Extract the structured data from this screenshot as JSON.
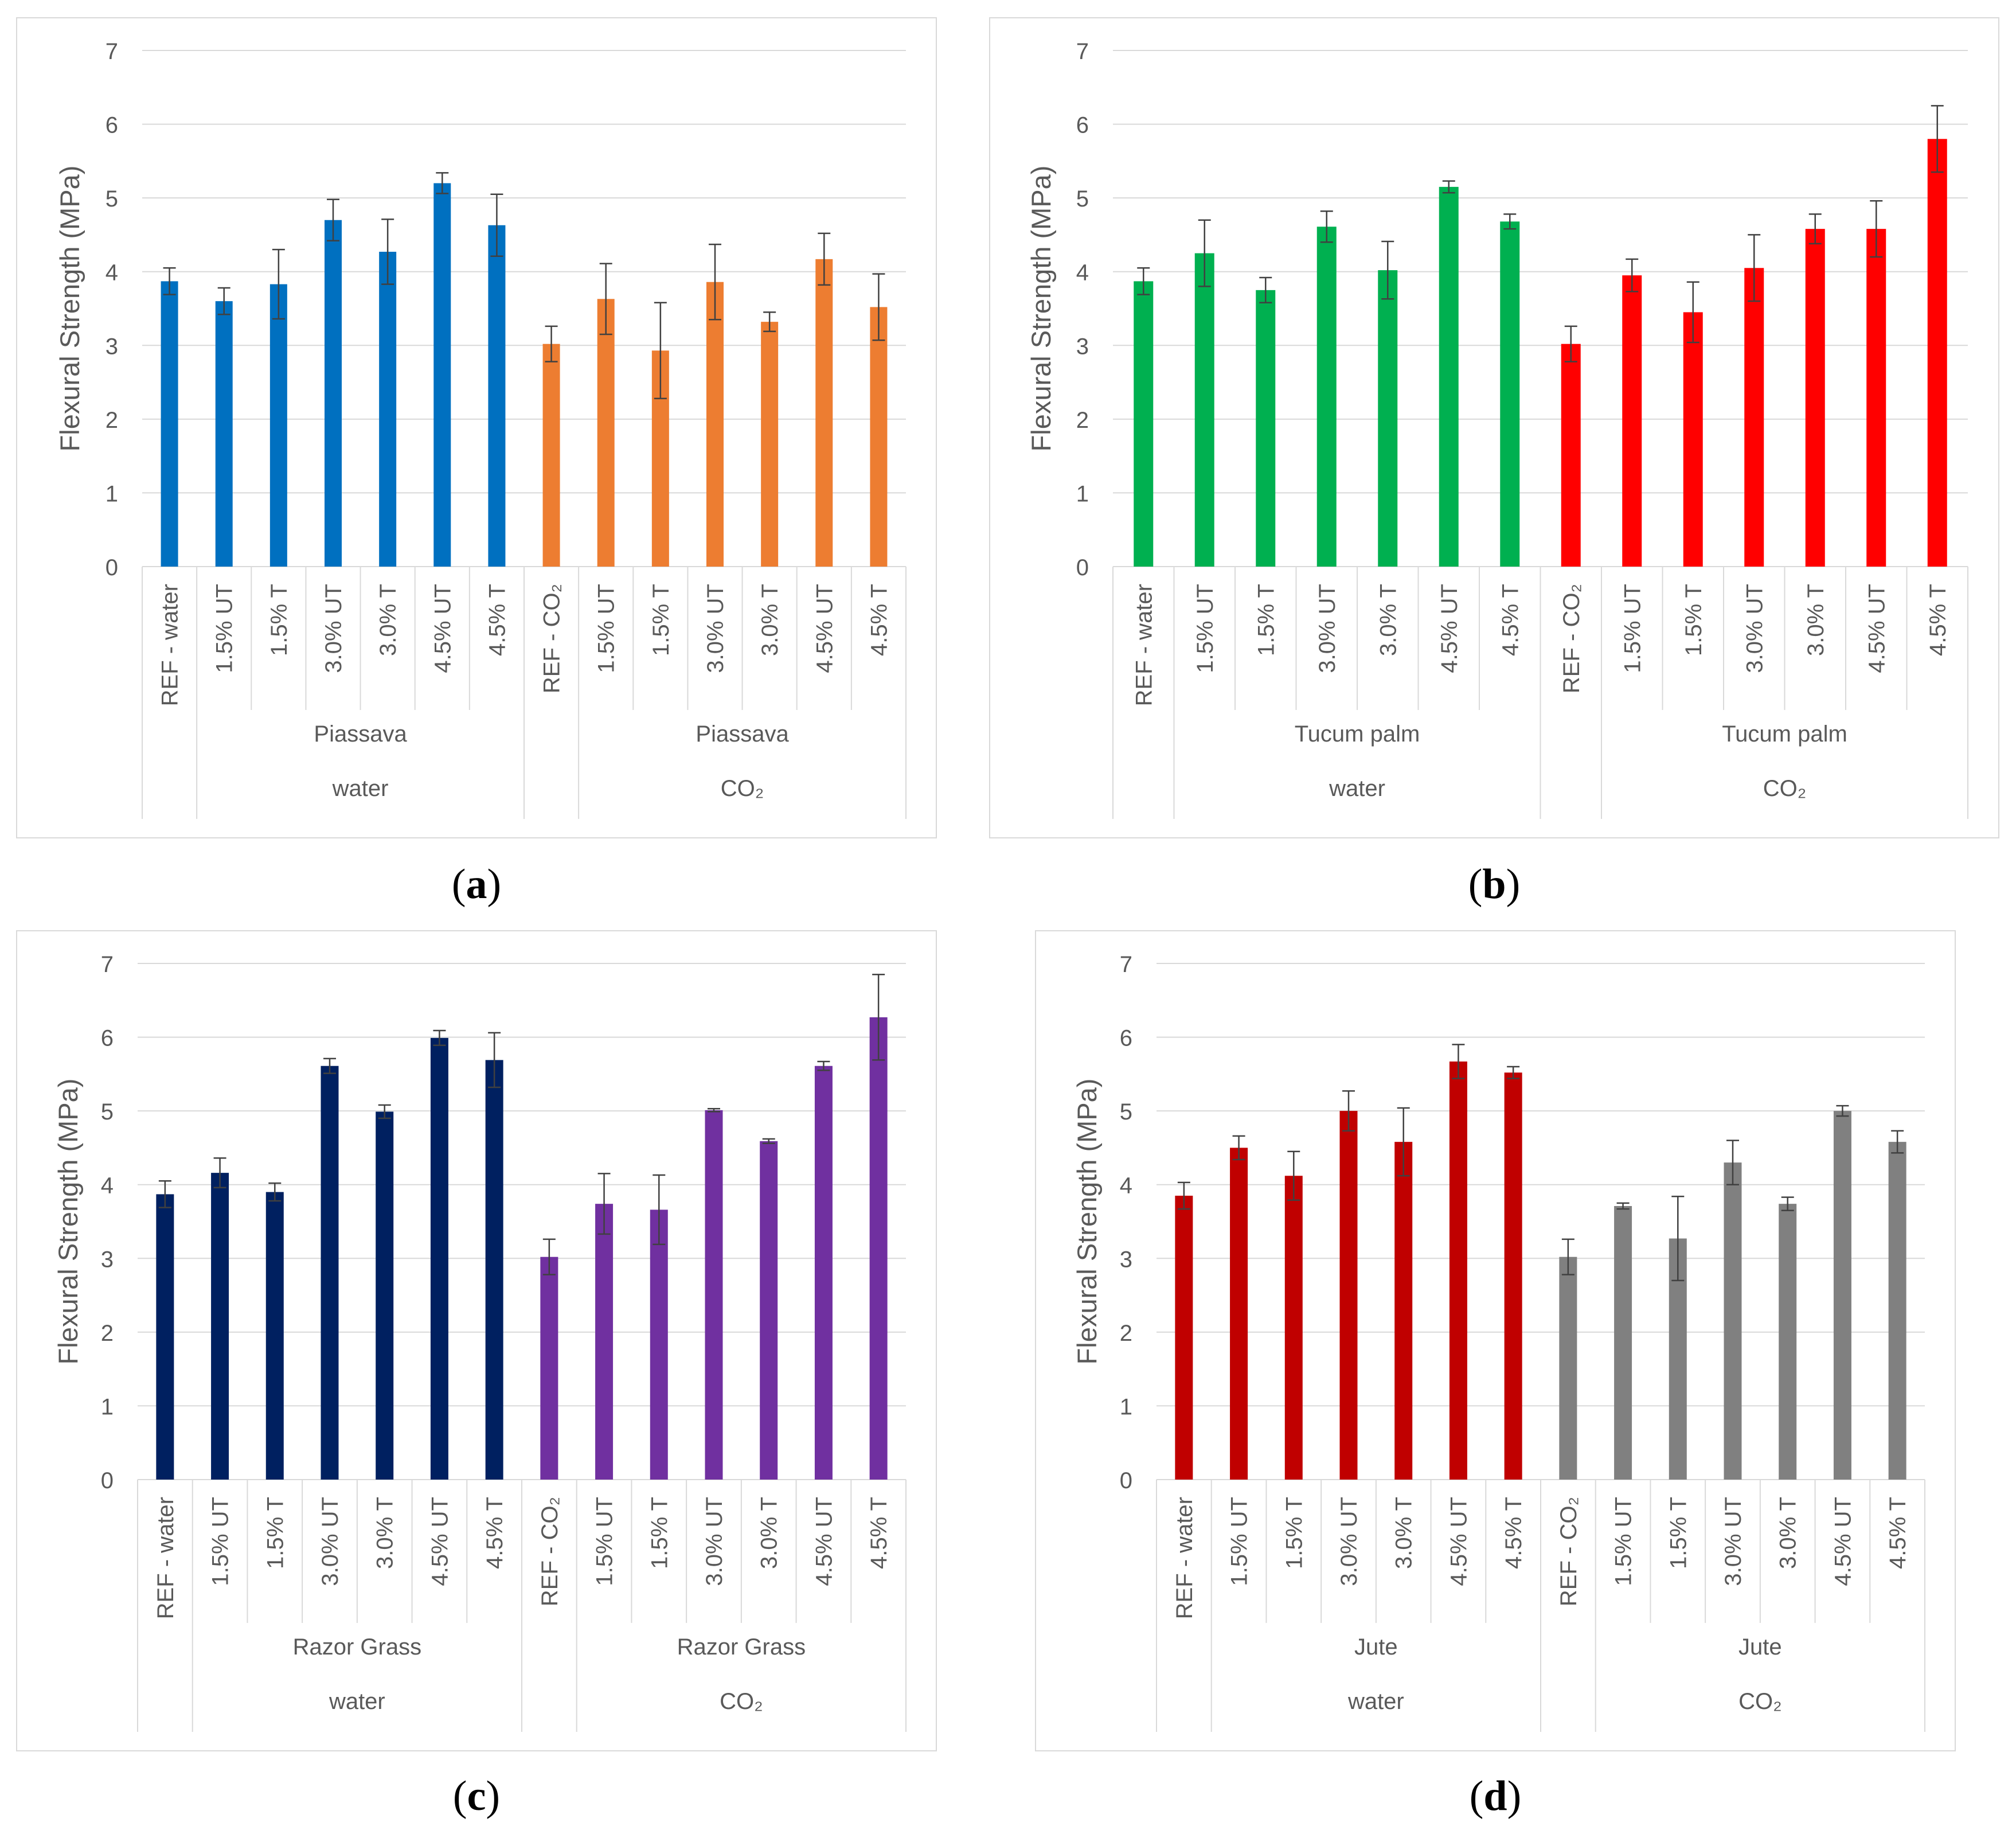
{
  "chart_data": [
    {
      "type": "bar",
      "panel": "a",
      "caption_letter": "a",
      "ylabel": "Flexural Strength (MPa)",
      "ylim": [
        0,
        7
      ],
      "yticks": [
        "0",
        "1",
        "2",
        "3",
        "4",
        "5",
        "6",
        "7"
      ],
      "grid": true,
      "categories": [
        "REF - water",
        "1.5% UT",
        "1.5%  T",
        "3.0%  UT",
        "3.0%  T",
        "4.5%  UT",
        "4.5% T",
        "REF - CO₂",
        "1.5% UT",
        "1.5%  T",
        "3.0%  UT",
        "3.0%  T",
        "4.5%  UT",
        "4.5% T"
      ],
      "values": [
        3.87,
        3.6,
        3.83,
        4.7,
        4.27,
        5.2,
        4.63,
        3.02,
        3.63,
        2.93,
        3.86,
        3.32,
        4.17,
        3.52
      ],
      "errors": [
        0.18,
        0.18,
        0.47,
        0.28,
        0.44,
        0.14,
        0.42,
        0.24,
        0.48,
        0.65,
        0.51,
        0.13,
        0.35,
        0.45
      ],
      "colors": [
        "#0070c0",
        "#0070c0",
        "#0070c0",
        "#0070c0",
        "#0070c0",
        "#0070c0",
        "#0070c0",
        "#ed7d31",
        "#ed7d31",
        "#ed7d31",
        "#ed7d31",
        "#ed7d31",
        "#ed7d31",
        "#ed7d31"
      ],
      "fiber_groups": [
        {
          "label": "Piassava",
          "start": 1,
          "end": 6
        },
        {
          "label": "Piassava",
          "start": 8,
          "end": 13
        }
      ],
      "env_groups": [
        {
          "label": "water",
          "start": 1,
          "end": 6
        },
        {
          "label": "CO₂",
          "start": 8,
          "end": 13
        }
      ]
    },
    {
      "type": "bar",
      "panel": "b",
      "caption_letter": "b",
      "ylabel": "Flexural Strength (MPa)",
      "ylim": [
        0,
        7
      ],
      "yticks": [
        "0",
        "1",
        "2",
        "3",
        "4",
        "5",
        "6",
        "7"
      ],
      "grid": true,
      "categories": [
        "REF - water",
        "1.5% UT",
        "1.5%  T",
        "3.0%  UT",
        "3.0%  T",
        "4.5%  UT",
        "4.5% T",
        "REF - CO₂",
        "1.5% UT",
        "1.5%  T",
        "3.0%  UT",
        "3.0%  T",
        "4.5%  UT",
        "4.5% T"
      ],
      "values": [
        3.87,
        4.25,
        3.75,
        4.61,
        4.02,
        5.15,
        4.68,
        3.02,
        3.95,
        3.45,
        4.05,
        4.58,
        4.58,
        5.8
      ],
      "errors": [
        0.18,
        0.45,
        0.17,
        0.21,
        0.39,
        0.08,
        0.1,
        0.24,
        0.22,
        0.41,
        0.45,
        0.2,
        0.38,
        0.45
      ],
      "colors": [
        "#00b050",
        "#00b050",
        "#00b050",
        "#00b050",
        "#00b050",
        "#00b050",
        "#00b050",
        "#ff0000",
        "#ff0000",
        "#ff0000",
        "#ff0000",
        "#ff0000",
        "#ff0000",
        "#ff0000"
      ],
      "fiber_groups": [
        {
          "label": "Tucum palm",
          "start": 1,
          "end": 6
        },
        {
          "label": "Tucum palm",
          "start": 8,
          "end": 13
        }
      ],
      "env_groups": [
        {
          "label": "water",
          "start": 1,
          "end": 6
        },
        {
          "label": "CO₂",
          "start": 8,
          "end": 13
        }
      ]
    },
    {
      "type": "bar",
      "panel": "c",
      "caption_letter": "c",
      "ylabel": "Flexural Strength (MPa)",
      "ylim": [
        0,
        7
      ],
      "yticks": [
        "0",
        "1",
        "2",
        "3",
        "4",
        "5",
        "6",
        "7"
      ],
      "grid": true,
      "categories": [
        "REF - water",
        "1.5% UT",
        "1.5%  T",
        "3.0%  UT",
        "3.0%  T",
        "4.5%  UT",
        "4.5% T",
        "REF - CO₂",
        "1.5% UT",
        "1.5%  T",
        "3.0%  UT",
        "3.0%  T",
        "4.5%  UT",
        "4.5% T"
      ],
      "values": [
        3.87,
        4.16,
        3.9,
        5.61,
        4.99,
        5.99,
        5.69,
        3.02,
        3.74,
        3.66,
        5.01,
        4.59,
        5.61,
        6.27
      ],
      "errors": [
        0.18,
        0.2,
        0.12,
        0.1,
        0.09,
        0.1,
        0.37,
        0.24,
        0.41,
        0.47,
        0.02,
        0.03,
        0.06,
        0.58
      ],
      "colors": [
        "#002060",
        "#002060",
        "#002060",
        "#002060",
        "#002060",
        "#002060",
        "#002060",
        "#7030a0",
        "#7030a0",
        "#7030a0",
        "#7030a0",
        "#7030a0",
        "#7030a0",
        "#7030a0"
      ],
      "fiber_groups": [
        {
          "label": "Razor Grass",
          "start": 1,
          "end": 6
        },
        {
          "label": "Razor Grass",
          "start": 8,
          "end": 13
        }
      ],
      "env_groups": [
        {
          "label": "water",
          "start": 1,
          "end": 6
        },
        {
          "label": "CO₂",
          "start": 8,
          "end": 13
        }
      ]
    },
    {
      "type": "bar",
      "panel": "d",
      "caption_letter": "d",
      "ylabel": "Flexural Strength (MPa)",
      "ylim": [
        0,
        7
      ],
      "yticks": [
        "0",
        "1",
        "2",
        "3",
        "4",
        "5",
        "6",
        "7"
      ],
      "grid": true,
      "categories": [
        "REF - water",
        "1.5% UT",
        "1.5%  T",
        "3.0%  UT",
        "3.0%  T",
        "4.5%  UT",
        "4.5% T",
        "REF - CO₂",
        "1.5% UT",
        "1.5%  T",
        "3.0%  UT",
        "3.0%  T",
        "4.5%  UT",
        "4.5% T"
      ],
      "values": [
        3.85,
        4.5,
        4.12,
        5.0,
        4.58,
        5.67,
        5.52,
        3.02,
        3.71,
        3.27,
        4.3,
        3.74,
        5.0,
        4.58
      ],
      "errors": [
        0.18,
        0.16,
        0.33,
        0.27,
        0.46,
        0.23,
        0.08,
        0.24,
        0.04,
        0.57,
        0.3,
        0.09,
        0.07,
        0.15
      ],
      "colors": [
        "#c00000",
        "#c00000",
        "#c00000",
        "#c00000",
        "#c00000",
        "#c00000",
        "#c00000",
        "#808080",
        "#808080",
        "#808080",
        "#808080",
        "#808080",
        "#808080",
        "#808080"
      ],
      "fiber_groups": [
        {
          "label": "Jute",
          "start": 1,
          "end": 6
        },
        {
          "label": "Jute",
          "start": 8,
          "end": 13
        }
      ],
      "env_groups": [
        {
          "label": "water",
          "start": 1,
          "end": 6
        },
        {
          "label": "CO₂",
          "start": 8,
          "end": 13
        }
      ]
    }
  ],
  "colors": {
    "grid": "#d9d9d9",
    "axis_text": "#595959",
    "error_bar": "#404040",
    "border": "#d9d9d9"
  }
}
